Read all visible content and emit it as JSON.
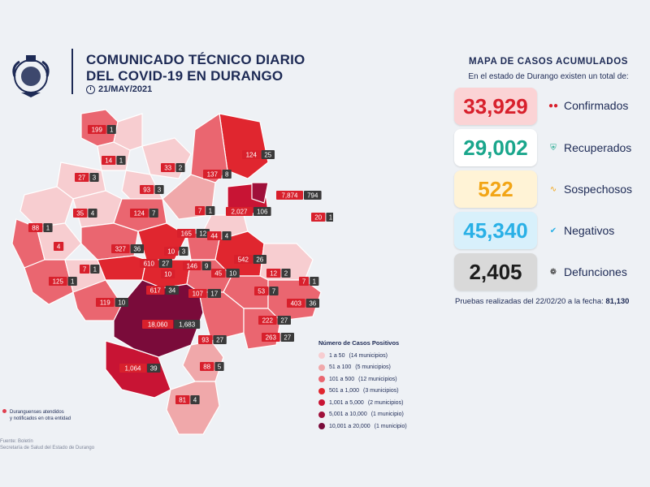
{
  "header": {
    "title_line1": "COMUNICADO TÉCNICO DIARIO",
    "title_line2": "DEL COVID-19 EN DURANGO",
    "date": "21/MAY/2021"
  },
  "summary": {
    "title": "MAPA DE CASOS ACUMULADOS",
    "subtitle": "En el estado de Durango existen un total de:",
    "stats": [
      {
        "value": "33,929",
        "label": "Confirmados",
        "icon": "people-icon",
        "bg": "#fbd3d5",
        "fg": "#d8202c"
      },
      {
        "value": "29,002",
        "label": "Recuperados",
        "icon": "shield-check-icon",
        "bg": "#ffffff",
        "fg": "#1aa68c"
      },
      {
        "value": "522",
        "label": "Sospechosos",
        "icon": "pulse-icon",
        "bg": "#fff3d6",
        "fg": "#f2a516"
      },
      {
        "value": "45,340",
        "label": "Negativos",
        "icon": "check-circle-icon",
        "bg": "#d8f0fb",
        "fg": "#29b0e6"
      },
      {
        "value": "2,405",
        "label": "Defunciones",
        "icon": "ribbon-icon",
        "bg": "#d9d9d9",
        "fg": "#1d1d1d"
      }
    ],
    "footer_prefix": "Pruebas realizadas del 22/02/20 a la fecha: ",
    "footer_value": "81,130"
  },
  "legend": {
    "title": "Número de Casos Positivos",
    "items": [
      {
        "label": "1 a 50",
        "detail": "(14 municipios)",
        "color": "#f7cdd0"
      },
      {
        "label": "51 a 100",
        "detail": "(5 municipios)",
        "color": "#f0a8aa"
      },
      {
        "label": "101 a 500",
        "detail": "(12 municipios)",
        "color": "#ea6670"
      },
      {
        "label": "501 a 1,000",
        "detail": "(3 municipios)",
        "color": "#e0262f"
      },
      {
        "label": "1,001 a 5,000",
        "detail": "(2 municipios)",
        "color": "#c81434"
      },
      {
        "label": "5,001 a 10,000",
        "detail": "(1 municipio)",
        "color": "#a0103a"
      },
      {
        "label": "10,001 a 20,000",
        "detail": "(1 municipio)",
        "color": "#7a0b3a"
      }
    ]
  },
  "note": {
    "line1": "Duranguenses atendidos",
    "line2": "y notificados en otra entidad"
  },
  "source": {
    "line1": "Fuente: Boletín",
    "line2": "Secretaría de Salud del Estado de Durango"
  },
  "map": {
    "labels": [
      {
        "cases": "199",
        "deaths": "1"
      },
      {
        "cases": "14",
        "deaths": "1"
      },
      {
        "cases": "27",
        "deaths": "3"
      },
      {
        "cases": "33",
        "deaths": "2"
      },
      {
        "cases": "124",
        "deaths": "25"
      },
      {
        "cases": "137",
        "deaths": "8"
      },
      {
        "cases": "93",
        "deaths": "3"
      },
      {
        "cases": "35",
        "deaths": "4"
      },
      {
        "cases": "124",
        "deaths": "7"
      },
      {
        "cases": "7",
        "deaths": "1"
      },
      {
        "cases": "7,874",
        "deaths": "794"
      },
      {
        "cases": "2,027",
        "deaths": "106"
      },
      {
        "cases": "20",
        "deaths": "1"
      },
      {
        "cases": "88",
        "deaths": "1"
      },
      {
        "cases": "4",
        "deaths": ""
      },
      {
        "cases": "165",
        "deaths": "12"
      },
      {
        "cases": "44",
        "deaths": "4"
      },
      {
        "cases": "327",
        "deaths": "36"
      },
      {
        "cases": "10",
        "deaths": "3"
      },
      {
        "cases": "542",
        "deaths": "26"
      },
      {
        "cases": "7",
        "deaths": "1"
      },
      {
        "cases": "610",
        "deaths": "27"
      },
      {
        "cases": "10",
        "deaths": ""
      },
      {
        "cases": "146",
        "deaths": "9"
      },
      {
        "cases": "45",
        "deaths": "10"
      },
      {
        "cases": "12",
        "deaths": "2"
      },
      {
        "cases": "7",
        "deaths": "1"
      },
      {
        "cases": "125",
        "deaths": "1"
      },
      {
        "cases": "617",
        "deaths": "34"
      },
      {
        "cases": "107",
        "deaths": "17"
      },
      {
        "cases": "53",
        "deaths": "7"
      },
      {
        "cases": "119",
        "deaths": "10"
      },
      {
        "cases": "403",
        "deaths": "36"
      },
      {
        "cases": "18,060",
        "deaths": "1,683"
      },
      {
        "cases": "222",
        "deaths": "27"
      },
      {
        "cases": "93",
        "deaths": "27"
      },
      {
        "cases": "263",
        "deaths": "27"
      },
      {
        "cases": "1,064",
        "deaths": "39"
      },
      {
        "cases": "88",
        "deaths": "5"
      },
      {
        "cases": "81",
        "deaths": "4"
      }
    ]
  }
}
